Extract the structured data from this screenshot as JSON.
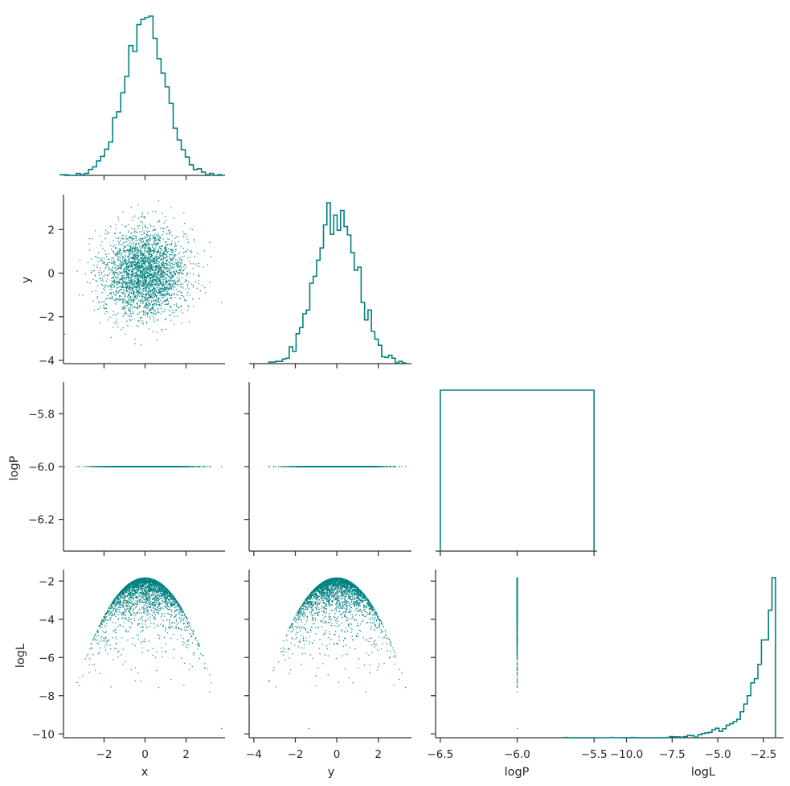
{
  "chart_data": {
    "type": "pairplot",
    "variables": [
      "x",
      "y",
      "logP",
      "logL"
    ],
    "color": "#008080",
    "layout": "lower-triangle corner plot",
    "n_samples": 3000,
    "data_model": {
      "x": {
        "dist": "normal",
        "mean": 0,
        "sd": 1
      },
      "y": {
        "dist": "normal",
        "mean": 0,
        "sd": 1
      },
      "logP": {
        "dist": "constant",
        "value": -6.0
      },
      "logL": {
        "formula": "-(x^2 + y^2)/2 - 1.84"
      }
    },
    "axes": {
      "x": {
        "label": "x",
        "range": [
          -3.9,
          3.9
        ],
        "ticks": [
          -2,
          0,
          2
        ],
        "tick_labels": [
          "−2",
          "0",
          "2"
        ]
      },
      "y": {
        "label": "y",
        "range": [
          -4.15,
          3.6
        ],
        "ticks": [
          -4,
          -2,
          0,
          2
        ],
        "tick_labels": [
          "−4",
          "−2",
          "0",
          "2"
        ]
      },
      "logP": {
        "label": "logP",
        "range_x": [
          -6.52,
          -5.48
        ],
        "range_y": [
          -6.32,
          -5.68
        ],
        "ticks_x": [
          -6.5,
          -6.0,
          -5.5
        ],
        "tick_labels_x": [
          "−6.5",
          "−6.0",
          "−5.5"
        ],
        "ticks_y": [
          -6.2,
          -6.0,
          -5.8
        ],
        "tick_labels_y": [
          "−6.2",
          "−6.0",
          "−5.8"
        ]
      },
      "logL": {
        "label": "logL",
        "range": [
          -10.2,
          -1.4
        ],
        "ticks": [
          -10,
          -8,
          -6,
          -4,
          -2
        ],
        "tick_labels": [
          "−10",
          "−8",
          "−6",
          "−4",
          "−2"
        ],
        "ticks_x": [
          -10.0,
          -7.5,
          -5.0,
          -2.5
        ],
        "tick_labels_x": [
          "−10.0",
          "−7.5",
          "−5.0",
          "−2.5"
        ]
      }
    },
    "histograms": {
      "x": {
        "bins": 40,
        "peak_density": 0.41
      },
      "y": {
        "bins": 40,
        "peak_density": 0.41
      },
      "logP": {
        "bin_edges": [
          -6.5,
          -5.5
        ],
        "counts": [
          1
        ]
      },
      "logL": {
        "bins": 60,
        "note": "strongly left-skewed, peak near −1.84"
      }
    }
  }
}
